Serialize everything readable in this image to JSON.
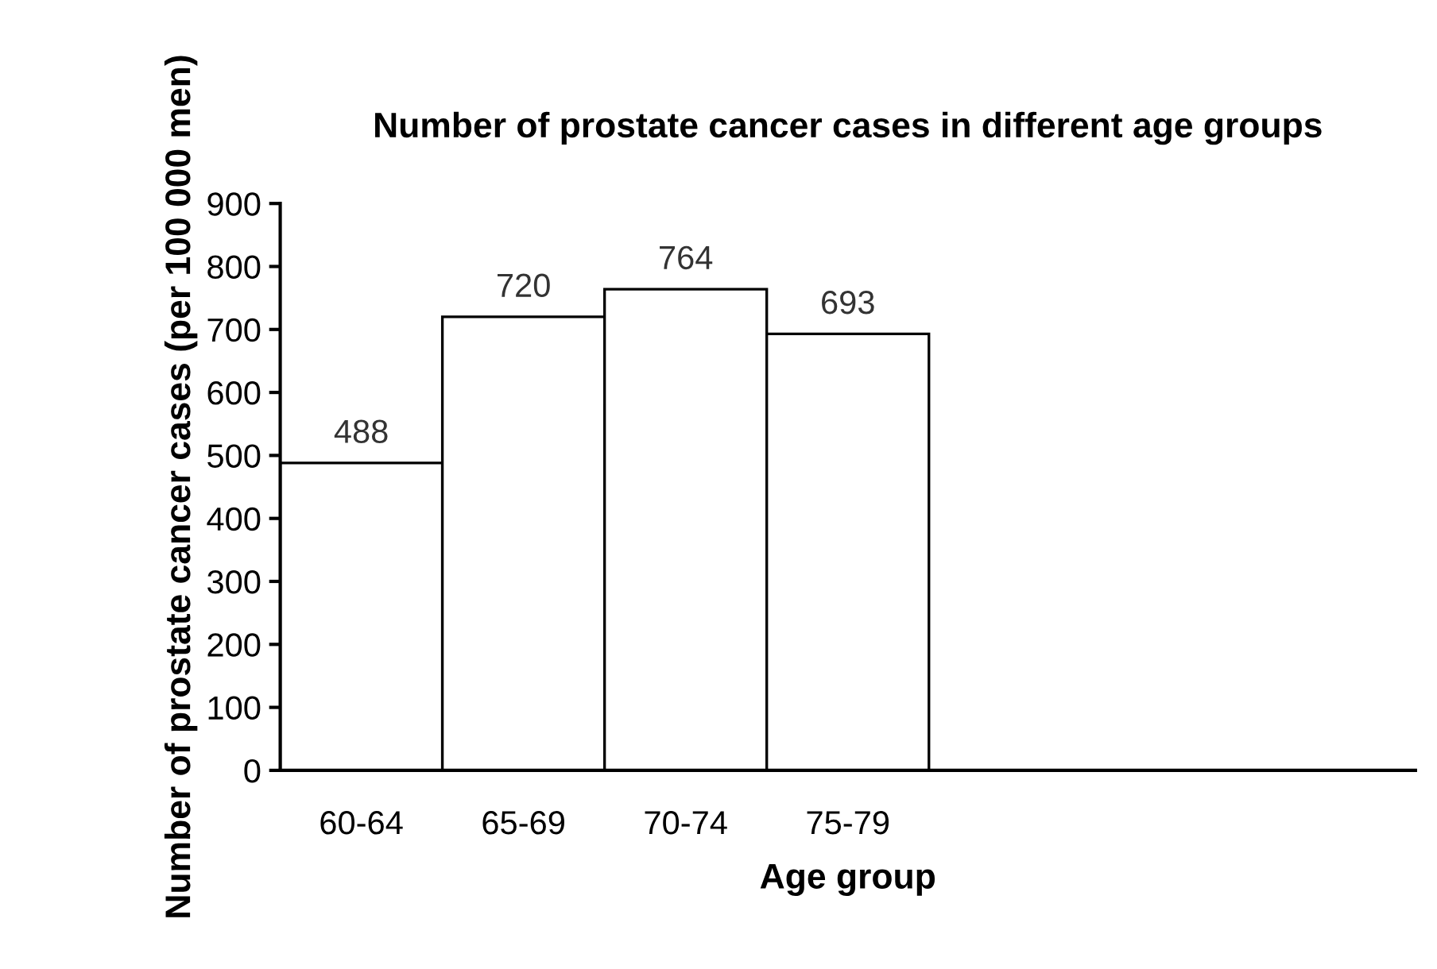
{
  "chart_data": {
    "type": "bar",
    "title": "Number of prostate cancer cases in different age groups",
    "xlabel": "Age group",
    "ylabel": "Number of prostate cancer cases (per 100 000 men)",
    "categories": [
      "60-64",
      "65-69",
      "70-74",
      "75-79"
    ],
    "values": [
      488,
      720,
      764,
      693
    ],
    "color": "#ffffff",
    "ylim": [
      0,
      900
    ],
    "yticks": [
      0,
      100,
      200,
      300,
      400,
      500,
      600,
      700,
      800,
      900
    ],
    "data_labels": true,
    "grid": false,
    "legend": false
  }
}
